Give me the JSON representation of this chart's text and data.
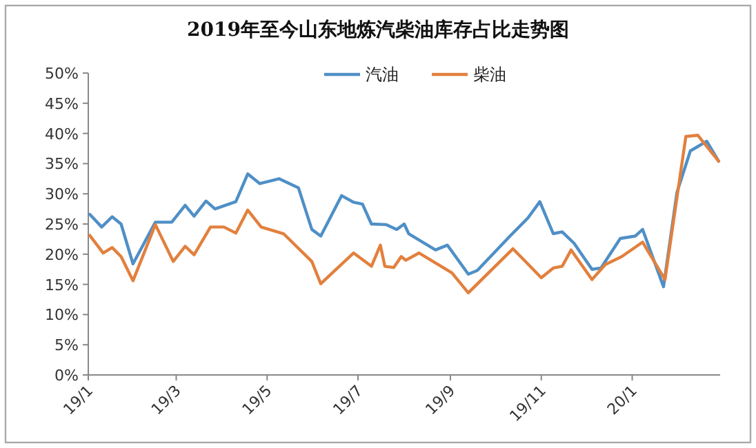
{
  "chart_data": {
    "type": "line",
    "title": "2019年至今山东地炼汽柴油库存占比走势图",
    "series": [
      {
        "name": "汽油",
        "color": "#4f8fc6",
        "x": [
          "2019-01-02",
          "2019-01-10",
          "2019-01-17",
          "2019-01-23",
          "2019-01-31",
          "2019-02-15",
          "2019-02-26",
          "2019-03-07",
          "2019-03-13",
          "2019-03-21",
          "2019-03-27",
          "2019-04-10",
          "2019-04-18",
          "2019-04-26",
          "2019-05-09",
          "2019-05-22",
          "2019-05-31",
          "2019-06-06",
          "2019-06-20",
          "2019-06-28",
          "2019-07-04",
          "2019-07-10",
          "2019-07-20",
          "2019-07-27",
          "2019-08-01",
          "2019-08-04",
          "2019-08-22",
          "2019-08-30",
          "2019-09-13",
          "2019-09-19",
          "2019-10-11",
          "2019-10-23",
          "2019-10-31",
          "2019-11-09",
          "2019-11-15",
          "2019-11-23",
          "2019-12-05",
          "2019-12-11",
          "2019-12-24",
          "2020-01-03",
          "2020-01-08",
          "2020-01-22",
          "2020-01-31",
          "2020-02-09",
          "2020-02-20",
          "2020-02-28"
        ],
        "values": [
          26.6,
          24.5,
          26.2,
          25.0,
          18.4,
          25.3,
          25.3,
          28.1,
          26.3,
          28.8,
          27.5,
          28.7,
          33.3,
          31.7,
          32.5,
          31.0,
          24.1,
          23.0,
          29.7,
          28.6,
          28.3,
          25.0,
          24.9,
          24.1,
          25.0,
          23.4,
          20.7,
          21.5,
          16.7,
          17.3,
          23.0,
          26.0,
          28.7,
          23.4,
          23.7,
          21.8,
          17.5,
          17.7,
          22.6,
          23.0,
          24.1,
          14.6,
          30.2,
          37.1,
          38.7,
          35.4
        ]
      },
      {
        "name": "柴油",
        "color": "#e2803e",
        "x": [
          "2019-01-02",
          "2019-01-11",
          "2019-01-17",
          "2019-01-23",
          "2019-01-31",
          "2019-02-15",
          "2019-02-27",
          "2019-03-07",
          "2019-03-13",
          "2019-03-24",
          "2019-04-02",
          "2019-04-10",
          "2019-04-18",
          "2019-04-27",
          "2019-05-12",
          "2019-05-31",
          "2019-06-06",
          "2019-06-28",
          "2019-07-10",
          "2019-07-16",
          "2019-07-19",
          "2019-07-25",
          "2019-07-30",
          "2019-08-02",
          "2019-08-11",
          "2019-09-02",
          "2019-09-13",
          "2019-10-13",
          "2019-11-01",
          "2019-11-09",
          "2019-11-15",
          "2019-11-21",
          "2019-12-05",
          "2019-12-14",
          "2019-12-25",
          "2020-01-08",
          "2020-01-23",
          "2020-02-06",
          "2020-02-14",
          "2020-02-28"
        ],
        "values": [
          23.1,
          20.2,
          21.1,
          19.6,
          15.6,
          24.9,
          18.8,
          21.3,
          19.9,
          24.5,
          24.5,
          23.5,
          27.3,
          24.5,
          23.4,
          18.8,
          15.1,
          20.2,
          18.0,
          21.5,
          18.0,
          17.8,
          19.6,
          19.0,
          20.2,
          16.9,
          13.6,
          20.9,
          16.1,
          17.7,
          18.0,
          20.7,
          15.8,
          18.3,
          19.6,
          22.0,
          15.8,
          39.5,
          39.7,
          35.4
        ]
      }
    ],
    "xlim": [
      "2019-01-01",
      "2020-02-29"
    ],
    "xticks": [
      {
        "value": "2019-01-01",
        "label": "19/1"
      },
      {
        "value": "2019-03-01",
        "label": "19/3"
      },
      {
        "value": "2019-05-01",
        "label": "19/5"
      },
      {
        "value": "2019-07-01",
        "label": "19/7"
      },
      {
        "value": "2019-09-01",
        "label": "19/9"
      },
      {
        "value": "2019-11-01",
        "label": "19/11"
      },
      {
        "value": "2020-01-01",
        "label": "20/1"
      }
    ],
    "ylim": [
      0,
      50
    ],
    "yticks": [
      {
        "value": 0,
        "label": "0%"
      },
      {
        "value": 5,
        "label": "5%"
      },
      {
        "value": 10,
        "label": "10%"
      },
      {
        "value": 15,
        "label": "15%"
      },
      {
        "value": 20,
        "label": "20%"
      },
      {
        "value": 25,
        "label": "25%"
      },
      {
        "value": 30,
        "label": "30%"
      },
      {
        "value": 35,
        "label": "35%"
      },
      {
        "value": 40,
        "label": "40%"
      },
      {
        "value": 45,
        "label": "45%"
      },
      {
        "value": 50,
        "label": "50%"
      }
    ],
    "legend": "top",
    "grid": false
  }
}
